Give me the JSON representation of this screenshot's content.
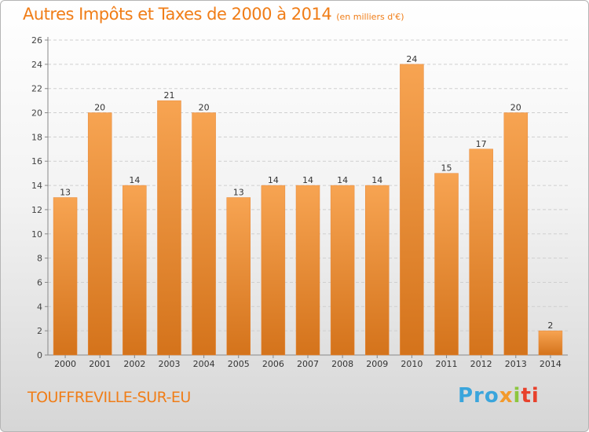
{
  "title": "Autres Impôts et Taxes de 2000 à 2014",
  "subtitle": "(en milliers d'€)",
  "city": "TOUFFREVILLE-SUR-EU",
  "logo": {
    "p1": "Pro",
    "p2": "x",
    "p3": "i",
    "p4": "ti"
  },
  "colors": {
    "accent": "#f07d17",
    "bar_top": "#f7a452",
    "bar_bottom": "#d4731b"
  },
  "chart_data": {
    "type": "bar",
    "categories": [
      "2000",
      "2001",
      "2002",
      "2003",
      "2004",
      "2005",
      "2006",
      "2007",
      "2008",
      "2009",
      "2010",
      "2011",
      "2012",
      "2013",
      "2014"
    ],
    "values": [
      13,
      20,
      14,
      21,
      20,
      13,
      14,
      14,
      14,
      14,
      24,
      15,
      17,
      20,
      2
    ],
    "ylim": [
      0,
      26
    ],
    "yticks": [
      0,
      2,
      4,
      6,
      8,
      10,
      12,
      14,
      16,
      18,
      20,
      22,
      24,
      26
    ],
    "grid": true,
    "data_labels": true
  }
}
